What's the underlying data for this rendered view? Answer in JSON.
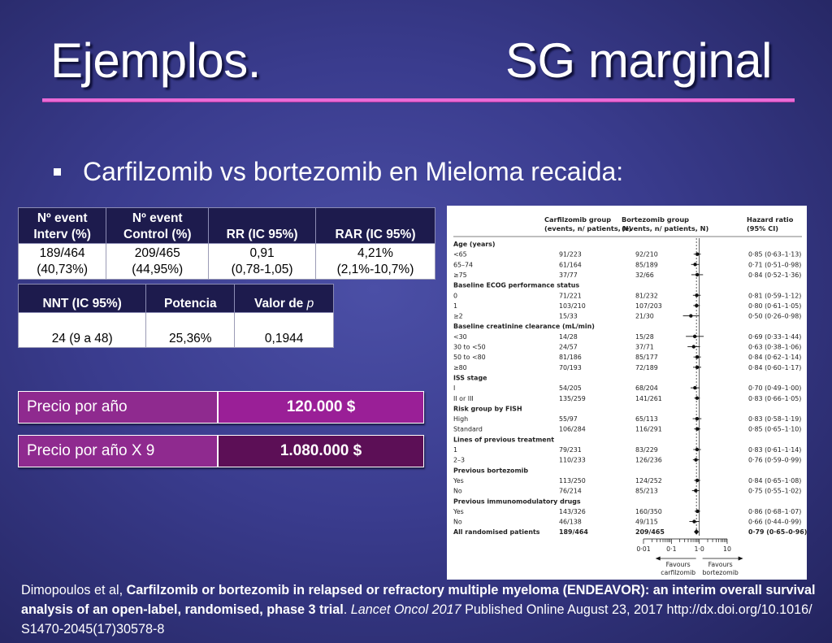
{
  "slide": {
    "title_left": "Ejemplos.",
    "title_right": "SG marginal",
    "bullet": "Carfilzomib vs bortezomib en Mieloma recaida:"
  },
  "table1": {
    "headers": [
      "Nº event Interv (%)",
      "Nº event Control (%)",
      "RR (IC 95%)",
      "RAR (IC 95%)"
    ],
    "header_lines": [
      [
        "Nº event",
        "Interv (%)"
      ],
      [
        "Nº event",
        "Control (%)"
      ],
      [
        "",
        "RR (IC 95%)"
      ],
      [
        "",
        "RAR (IC 95%)"
      ]
    ],
    "row": [
      [
        "189/464",
        "(40,73%)"
      ],
      [
        "209/465",
        "(44,95%)"
      ],
      [
        "0,91",
        "(0,78-1,05)"
      ],
      [
        "4,21%",
        "(2,1%-10,7%)"
      ]
    ]
  },
  "table2": {
    "headers": [
      "NNT (IC 95%)",
      "Potencia",
      "Valor de "
    ],
    "header_italic": "p",
    "row": [
      "24 (9 a 48)",
      "25,36%",
      "0,1944"
    ]
  },
  "price1": {
    "label": "Precio por año",
    "value": "120.000 $"
  },
  "price2": {
    "label": "Precio por año X 9",
    "value": "1.080.000 $"
  },
  "colors": {
    "accent_rule": "#e96ad6",
    "price_label": "#8f2a8f",
    "price_value_1": "#9a1f97",
    "price_value_2": "#5c0f56",
    "table_header": "#1d1b4d"
  },
  "forest": {
    "headers": {
      "carf": [
        "Carfilzomib group",
        "(events, n/ patients, N)"
      ],
      "bort": [
        "Bortezomib group",
        "(events, n/ patients, N)"
      ],
      "hr": [
        "Hazard ratio",
        "(95% CI)"
      ]
    },
    "rows": [
      {
        "label": "Age (years)",
        "header": true
      },
      {
        "label": "<65",
        "carf": "91/223",
        "bort": "92/210",
        "hr": "0·85 (0·63–1·13)",
        "est": 0.85,
        "lo": 0.63,
        "hi": 1.13
      },
      {
        "label": "65–74",
        "carf": "61/164",
        "bort": "85/189",
        "hr": "0·71 (0·51–0·98)",
        "est": 0.71,
        "lo": 0.51,
        "hi": 0.98
      },
      {
        "label": "≥75",
        "carf": "37/77",
        "bort": "32/66",
        "hr": "0·84 (0·52–1·36)",
        "est": 0.84,
        "lo": 0.52,
        "hi": 1.36
      },
      {
        "label": "Baseline ECOG performance status",
        "header": true
      },
      {
        "label": "0",
        "carf": "71/221",
        "bort": "81/232",
        "hr": "0·81 (0·59–1·12)",
        "est": 0.81,
        "lo": 0.59,
        "hi": 1.12
      },
      {
        "label": "1",
        "carf": "103/210",
        "bort": "107/203",
        "hr": "0·80 (0·61–1·05)",
        "est": 0.8,
        "lo": 0.61,
        "hi": 1.05
      },
      {
        "label": "≥2",
        "carf": "15/33",
        "bort": "21/30",
        "hr": "0·50 (0·26–0·98)",
        "est": 0.5,
        "lo": 0.26,
        "hi": 0.98
      },
      {
        "label": "Baseline creatinine clearance (mL/min)",
        "header": true
      },
      {
        "label": "<30",
        "carf": "14/28",
        "bort": "15/28",
        "hr": "0·69 (0·33–1·44)",
        "est": 0.69,
        "lo": 0.33,
        "hi": 1.44
      },
      {
        "label": "30 to <50",
        "carf": "24/57",
        "bort": "37/71",
        "hr": "0·63 (0·38–1·06)",
        "est": 0.63,
        "lo": 0.38,
        "hi": 1.06
      },
      {
        "label": "50 to <80",
        "carf": "81/186",
        "bort": "85/177",
        "hr": "0·84 (0·62–1·14)",
        "est": 0.84,
        "lo": 0.62,
        "hi": 1.14
      },
      {
        "label": "≥80",
        "carf": "70/193",
        "bort": "72/189",
        "hr": "0·84 (0·60–1·17)",
        "est": 0.84,
        "lo": 0.6,
        "hi": 1.17
      },
      {
        "label": "ISS stage",
        "header": true
      },
      {
        "label": "I",
        "carf": "54/205",
        "bort": "68/204",
        "hr": "0·70 (0·49–1·00)",
        "est": 0.7,
        "lo": 0.49,
        "hi": 1.0
      },
      {
        "label": "II or III",
        "carf": "135/259",
        "bort": "141/261",
        "hr": "0·83 (0·66–1·05)",
        "est": 0.83,
        "lo": 0.66,
        "hi": 1.05
      },
      {
        "label": "Risk group by FISH",
        "header": true
      },
      {
        "label": "High",
        "carf": "55/97",
        "bort": "65/113",
        "hr": "0·83 (0·58–1·19)",
        "est": 0.83,
        "lo": 0.58,
        "hi": 1.19
      },
      {
        "label": "Standard",
        "carf": "106/284",
        "bort": "116/291",
        "hr": "0·85 (0·65–1·10)",
        "est": 0.85,
        "lo": 0.65,
        "hi": 1.1
      },
      {
        "label": "Lines of previous treatment",
        "header": true
      },
      {
        "label": "1",
        "carf": "79/231",
        "bort": "83/229",
        "hr": "0·83 (0·61–1·14)",
        "est": 0.83,
        "lo": 0.61,
        "hi": 1.14
      },
      {
        "label": "2–3",
        "carf": "110/233",
        "bort": "126/236",
        "hr": "0·76 (0·59–0·99)",
        "est": 0.76,
        "lo": 0.59,
        "hi": 0.99
      },
      {
        "label": "Previous bortezomib",
        "header": true
      },
      {
        "label": "Yes",
        "carf": "113/250",
        "bort": "124/252",
        "hr": "0·84 (0·65–1·08)",
        "est": 0.84,
        "lo": 0.65,
        "hi": 1.08
      },
      {
        "label": "No",
        "carf": "76/214",
        "bort": "85/213",
        "hr": "0·75 (0·55–1·02)",
        "est": 0.75,
        "lo": 0.55,
        "hi": 1.02
      },
      {
        "label": "Previous immunomodulatory drugs",
        "header": true
      },
      {
        "label": "Yes",
        "carf": "143/326",
        "bort": "160/350",
        "hr": "0·86 (0·68–1·07)",
        "est": 0.86,
        "lo": 0.68,
        "hi": 1.07
      },
      {
        "label": "No",
        "carf": "46/138",
        "bort": "49/115",
        "hr": "0·66 (0·44–0·99)",
        "est": 0.66,
        "lo": 0.44,
        "hi": 0.99
      },
      {
        "label": "All randomised patients",
        "carf": "189/464",
        "bort": "209/465",
        "hr": "0·79 (0·65–0·96)",
        "est": 0.79,
        "lo": 0.65,
        "hi": 0.96,
        "bold": true
      }
    ],
    "axis_ticks": [
      "0·01",
      "0·1",
      "1·0",
      "10"
    ],
    "favours_left": [
      "Favours",
      "carfilzomib"
    ],
    "favours_right": [
      "Favours",
      "bortezomib"
    ]
  },
  "chart_data": {
    "type": "scatter",
    "x_scale": "log",
    "xlim": [
      0.01,
      10
    ],
    "xticks": [
      "0·01",
      "0·1",
      "1·0",
      "10"
    ],
    "categories": [
      "<65",
      "65–74",
      "≥75",
      "0",
      "1",
      "≥2",
      "<30",
      "30 to <50",
      "50 to <80",
      "≥80",
      "I",
      "II or III",
      "High",
      "Standard",
      "1",
      "2–3",
      "Yes",
      "No",
      "Yes",
      "No",
      "All randomised patients"
    ],
    "series": [
      {
        "name": "Hazard ratio",
        "values": [
          0.85,
          0.71,
          0.84,
          0.81,
          0.8,
          0.5,
          0.69,
          0.63,
          0.84,
          0.84,
          0.7,
          0.83,
          0.83,
          0.85,
          0.83,
          0.76,
          0.84,
          0.75,
          0.86,
          0.66,
          0.79
        ]
      }
    ]
  },
  "citation": {
    "authors": "Dimopoulos et al, ",
    "title": "Carfilzomib or bortezomib in relapsed or refractory multiple myeloma (ENDEAVOR): an interim overall survival analysis of an open-label, randomised, phase 3 trial",
    "sep": ". ",
    "journal": "Lancet Oncol 2017",
    "rest": " Published Online August 23, 2017 http://dx.doi.org/10.1016/ S1470-2045(17)30578-8"
  }
}
